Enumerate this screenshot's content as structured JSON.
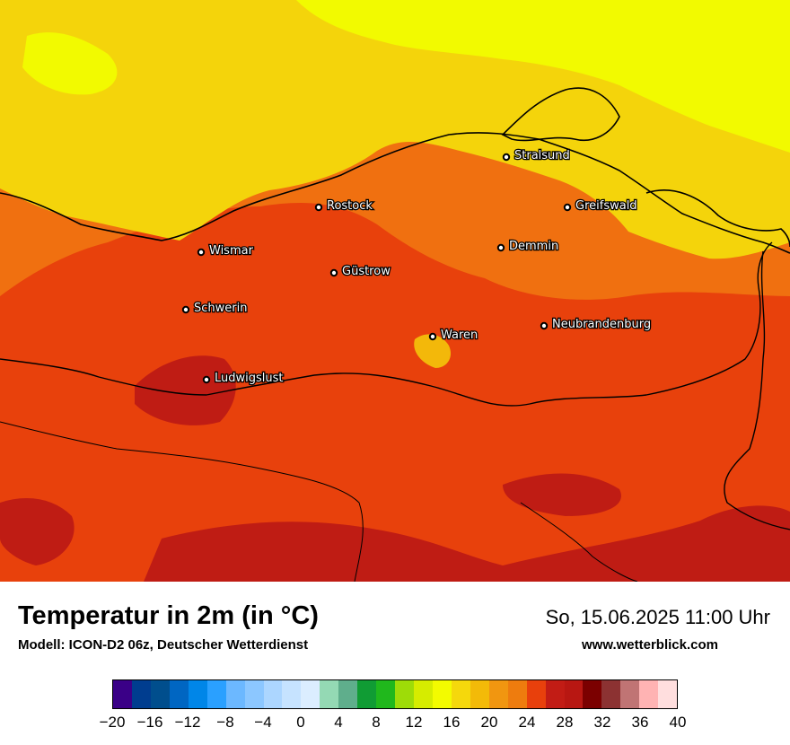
{
  "map": {
    "title": "Temperatur in 2m (in °C)",
    "model": "Modell: ICON-D2 06z, Deutscher Wetterdienst",
    "datetime": "So, 15.06.2025 11:00 Uhr",
    "website": "www.wetterblick.com",
    "cities": [
      {
        "name": "Stralsund"
      },
      {
        "name": "Rostock"
      },
      {
        "name": "Greifswald"
      },
      {
        "name": "Wismar"
      },
      {
        "name": "Demmin"
      },
      {
        "name": "Güstrow"
      },
      {
        "name": "Schwerin"
      },
      {
        "name": "Neubrandenburg"
      },
      {
        "name": "Waren"
      },
      {
        "name": "Ludwigslust"
      }
    ]
  },
  "legend": {
    "colors": [
      "#3a0087",
      "#003d8f",
      "#004e8d",
      "#0066c2",
      "#0086e8",
      "#2aa0ff",
      "#6cb8ff",
      "#8cc7ff",
      "#acd6ff",
      "#c6e3ff",
      "#dbedff",
      "#94d9b4",
      "#5fae8c",
      "#109c34",
      "#20b81c",
      "#9edc08",
      "#d6ec00",
      "#f3fb00",
      "#f5d80c",
      "#f3ba08",
      "#f19610",
      "#ee7c0e",
      "#e8400c",
      "#c21c15",
      "#b81712",
      "#7b0000",
      "#8c3232",
      "#c07474",
      "#ffb3b3",
      "#ffdede"
    ],
    "ticks": [
      "−20",
      "−16",
      "−12",
      "−8",
      "−4",
      "0",
      "4",
      "8",
      "12",
      "16",
      "20",
      "24",
      "28",
      "32",
      "36",
      "40"
    ]
  }
}
